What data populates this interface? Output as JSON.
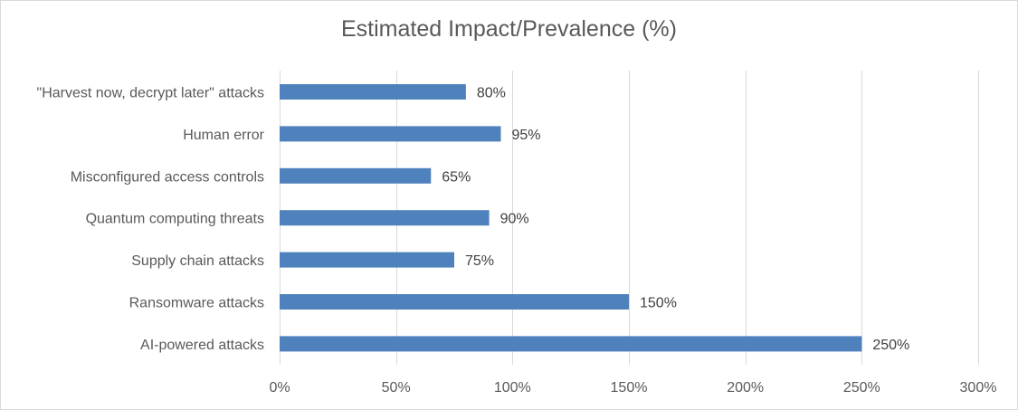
{
  "chart_data": {
    "type": "bar",
    "orientation": "horizontal",
    "title": "Estimated Impact/Prevalence (%)",
    "categories": [
      "\"Harvest now, decrypt later\" attacks",
      "Human error",
      "Misconfigured access controls",
      "Quantum computing threats",
      "Supply chain attacks",
      "Ransomware attacks",
      "AI-powered attacks"
    ],
    "values": [
      80,
      95,
      65,
      90,
      75,
      150,
      250
    ],
    "data_labels": [
      "80%",
      "95%",
      "65%",
      "90%",
      "75%",
      "150%",
      "250%"
    ],
    "x_ticks": [
      0,
      50,
      100,
      150,
      200,
      250,
      300
    ],
    "x_tick_labels": [
      "0%",
      "50%",
      "100%",
      "150%",
      "200%",
      "250%",
      "300%"
    ],
    "xlim": [
      0,
      300
    ],
    "xlabel": "",
    "ylabel": "",
    "grid": "vertical",
    "legend": "none",
    "bar_color": "#4f81bd",
    "grid_color": "#d9d9d9"
  }
}
